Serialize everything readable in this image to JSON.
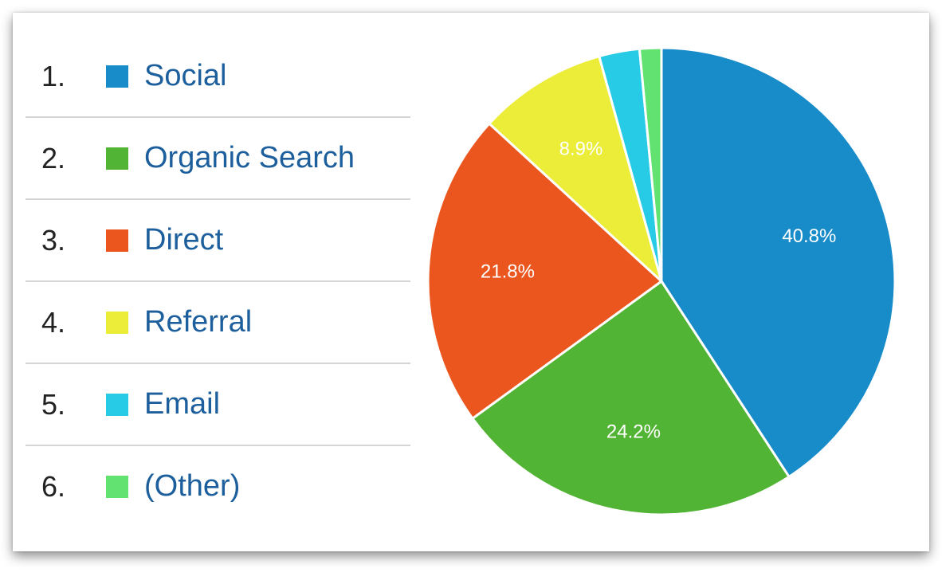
{
  "chart_data": {
    "type": "pie",
    "title": "",
    "legend_placement": "left",
    "slices": [
      {
        "rank": "1.",
        "label": "Social",
        "value": 40.8,
        "value_label": "40.8%",
        "color": "#188bc9"
      },
      {
        "rank": "2.",
        "label": "Organic Search",
        "value": 24.2,
        "value_label": "24.2%",
        "color": "#52b434"
      },
      {
        "rank": "3.",
        "label": "Direct",
        "value": 21.8,
        "value_label": "21.8%",
        "color": "#eb561f"
      },
      {
        "rank": "4.",
        "label": "Referral",
        "value": 8.9,
        "value_label": "8.9%",
        "color": "#ebed38"
      },
      {
        "rank": "5.",
        "label": "Email",
        "value": 2.8,
        "value_label": "",
        "color": "#28cbe6"
      },
      {
        "rank": "6.",
        "label": "(Other)",
        "value": 1.5,
        "value_label": "",
        "color": "#62e271"
      }
    ]
  }
}
